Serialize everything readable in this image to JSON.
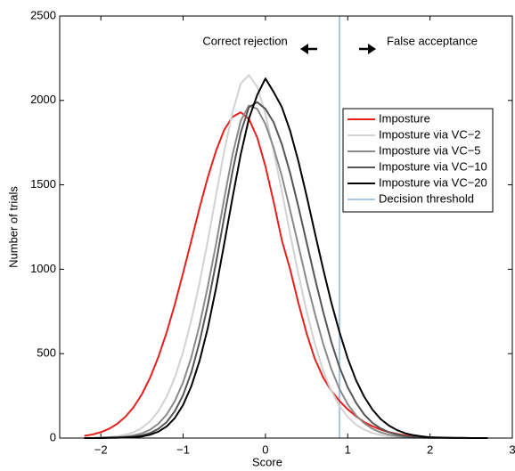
{
  "chart_data": {
    "type": "line",
    "xlabel": "Score",
    "ylabel": "Number of trials",
    "x": [
      -2.2,
      -2.1,
      -2.0,
      -1.9,
      -1.8,
      -1.7,
      -1.6,
      -1.5,
      -1.4,
      -1.3,
      -1.2,
      -1.1,
      -1.0,
      -0.9,
      -0.8,
      -0.7,
      -0.6,
      -0.5,
      -0.4,
      -0.3,
      -0.2,
      -0.1,
      0,
      0.1,
      0.2,
      0.3,
      0.4,
      0.5,
      0.6,
      0.7,
      0.8,
      0.9,
      1.0,
      1.1,
      1.2,
      1.3,
      1.4,
      1.5,
      1.6,
      1.7,
      1.8,
      1.9,
      2.0,
      2.1,
      2.2,
      2.3,
      2.4,
      2.5,
      2.6,
      2.7
    ],
    "series": [
      {
        "name": "Imposture",
        "color": "#e8201c",
        "width": 2,
        "values": [
          13,
          21,
          35,
          55,
          85,
          127,
          184,
          261,
          359,
          481,
          627,
          793,
          978,
          1171,
          1364,
          1546,
          1702,
          1826,
          1903,
          1930,
          1890,
          1780,
          1610,
          1400,
          1170,
          1000,
          800,
          620,
          470,
          360,
          280,
          220,
          170,
          130,
          95,
          70,
          50,
          35,
          24,
          16,
          10,
          6,
          4,
          2,
          1,
          0,
          0,
          0,
          0,
          0
        ]
      },
      {
        "name": "Imposture via VC−2",
        "color": "#d2d2d2",
        "width": 2,
        "values": [
          0,
          1,
          3,
          6,
          11,
          20,
          35,
          60,
          100,
          160,
          245,
          360,
          510,
          700,
          920,
          1170,
          1440,
          1700,
          1930,
          2100,
          2150,
          2080,
          1920,
          1700,
          1460,
          1210,
          970,
          750,
          560,
          400,
          280,
          190,
          125,
          80,
          50,
          30,
          18,
          10,
          6,
          3,
          2,
          1,
          0,
          0,
          0,
          0,
          0,
          0,
          0,
          0
        ]
      },
      {
        "name": "Imposture via VC−5",
        "color": "#8a8a8a",
        "width": 2,
        "values": [
          0,
          0,
          1,
          3,
          5,
          9,
          16,
          28,
          50,
          85,
          140,
          220,
          330,
          480,
          670,
          900,
          1150,
          1420,
          1680,
          1880,
          1970,
          1950,
          1860,
          1720,
          1550,
          1350,
          1140,
          930,
          740,
          560,
          410,
          290,
          200,
          135,
          88,
          55,
          34,
          20,
          12,
          7,
          4,
          2,
          1,
          1,
          0,
          0,
          0,
          0,
          0,
          0
        ]
      },
      {
        "name": "Imposture via VC−10",
        "color": "#555555",
        "width": 2,
        "values": [
          0,
          0,
          1,
          2,
          3,
          5,
          9,
          16,
          30,
          55,
          95,
          160,
          255,
          390,
          570,
          790,
          1040,
          1310,
          1580,
          1810,
          1960,
          1990,
          1950,
          1870,
          1740,
          1570,
          1370,
          1160,
          950,
          750,
          570,
          420,
          300,
          210,
          140,
          90,
          57,
          35,
          21,
          12,
          7,
          4,
          2,
          1,
          1,
          0,
          0,
          0,
          0,
          0
        ]
      },
      {
        "name": "Imposture via VC−20",
        "color": "#000000",
        "width": 2,
        "values": [
          0,
          0,
          0,
          1,
          2,
          3,
          5,
          10,
          20,
          38,
          69,
          119,
          196,
          308,
          458,
          653,
          889,
          1153,
          1425,
          1681,
          1893,
          2032,
          2130,
          2050,
          1960,
          1820,
          1640,
          1435,
          1218,
          1004,
          804,
          628,
          471,
          344,
          245,
          169,
          113,
          74,
          47,
          28,
          17,
          10,
          5,
          3,
          2,
          1,
          1,
          0,
          0,
          0
        ]
      }
    ],
    "threshold": {
      "name": "Decision threshold",
      "x": 0.9,
      "color": "#a9c8e8"
    },
    "annotations": [
      "Correct rejection",
      "False acceptance"
    ],
    "xlim": [
      -2.5,
      3
    ],
    "ylim": [
      0,
      2500
    ],
    "xticks": [
      {
        "value": -2,
        "label": "−2"
      },
      {
        "value": -1,
        "label": "−1"
      },
      0,
      1,
      2,
      3
    ],
    "yticks": [
      0,
      500,
      1000,
      1500,
      2000,
      2500
    ],
    "legend": "upper right",
    "grid": false
  }
}
